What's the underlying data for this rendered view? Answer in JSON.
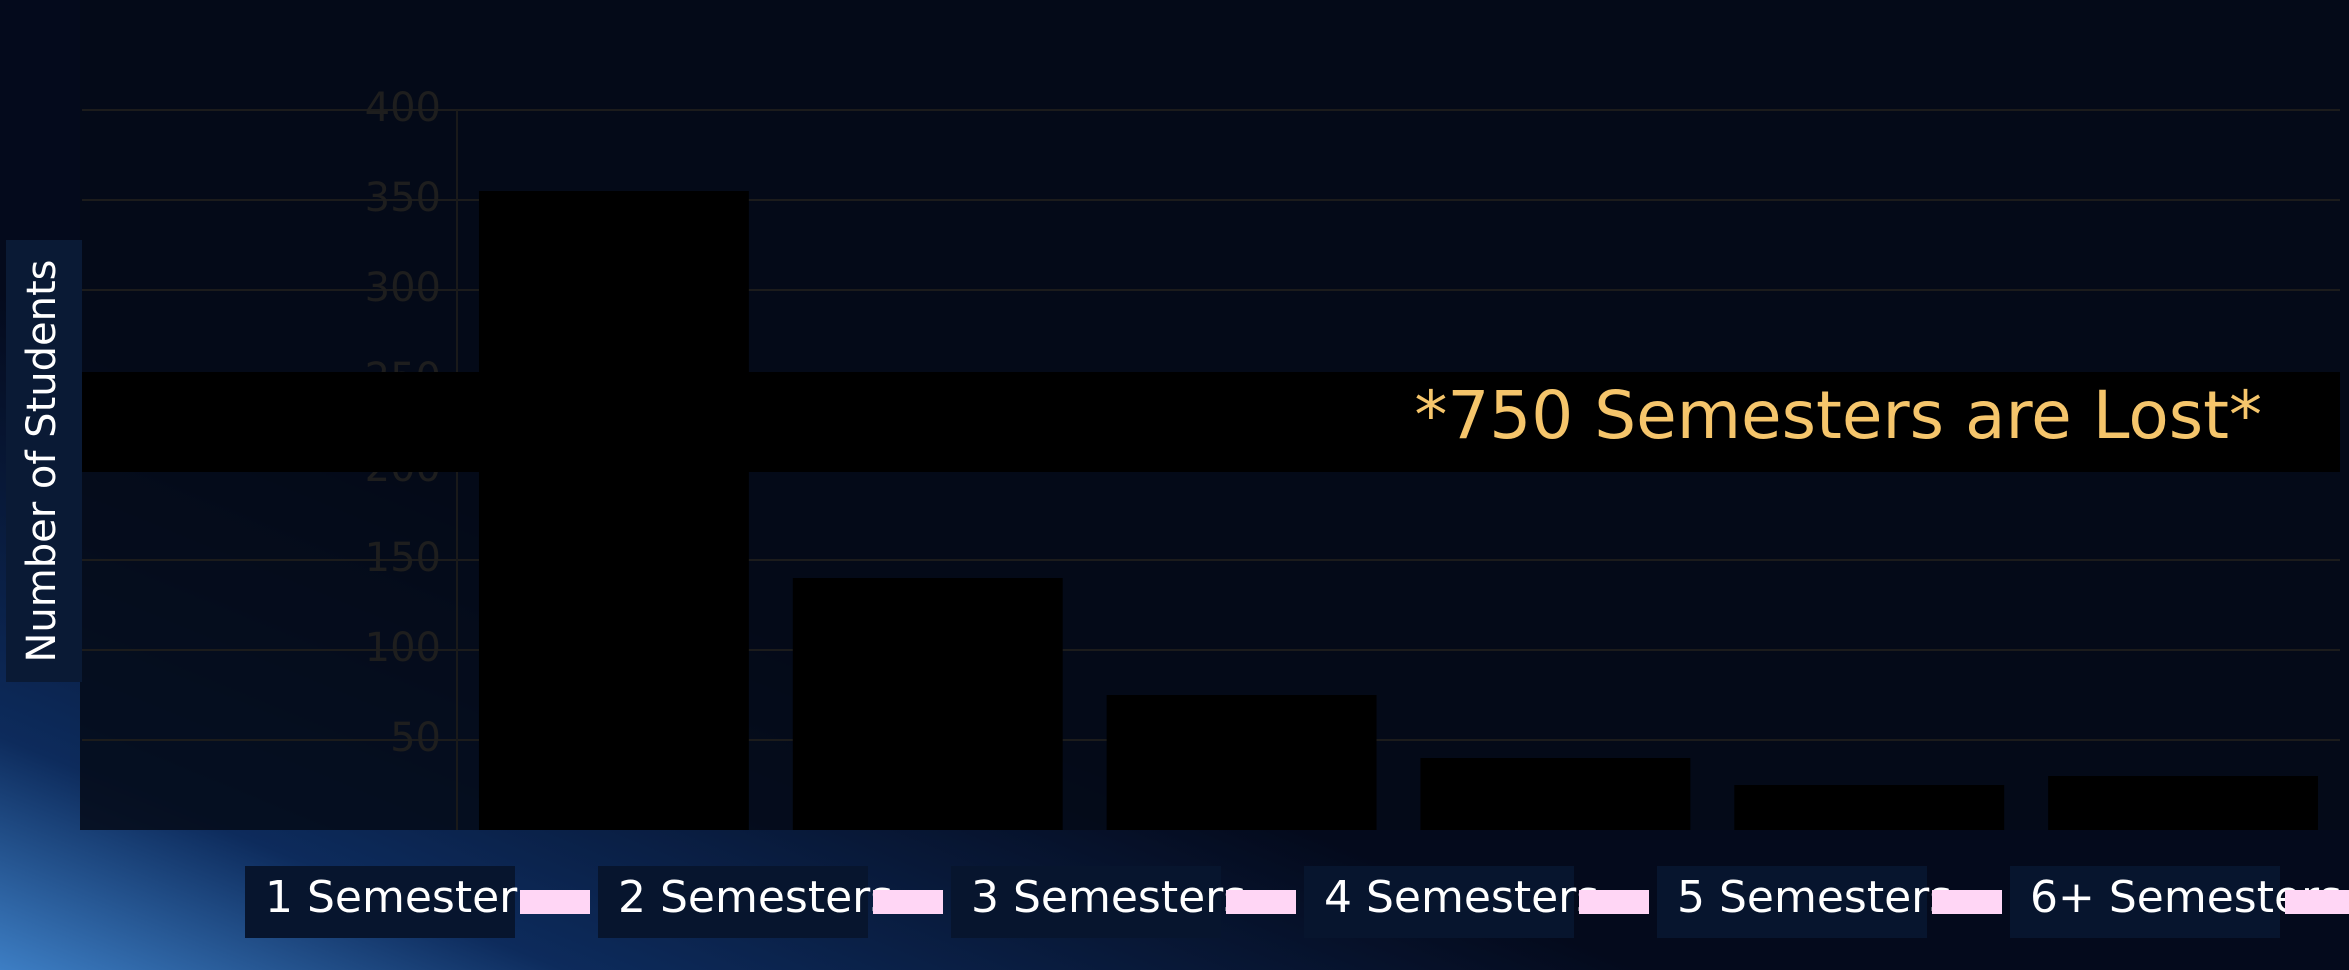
{
  "chart_data": {
    "type": "bar",
    "y_label": "Number of Students",
    "annotation": "*750 Semesters are Lost*",
    "categories": [
      "1 Semester",
      "2 Semesters",
      "3 Semesters",
      "4 Semesters",
      "5 Semesters",
      "6+ Semesters"
    ],
    "values": [
      355,
      140,
      75,
      40,
      25,
      30
    ],
    "color": "#000000",
    "legend_color": "#ffd6f5",
    "ylim": [
      0,
      400
    ],
    "yticks": [
      50,
      100,
      150,
      200,
      250,
      300,
      350,
      400
    ],
    "grid": true
  }
}
